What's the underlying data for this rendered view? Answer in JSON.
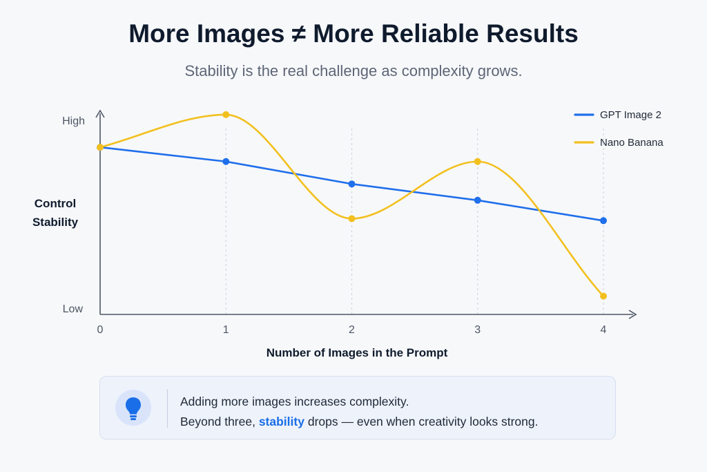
{
  "header": {
    "title": "More Images ≠ More Reliable Results",
    "subtitle": "Stability is the real challenge as complexity grows."
  },
  "colors": {
    "gpt": "#1f6feb",
    "nano": "#f2c01e",
    "axis": "#4b5563",
    "gridline": "#d0d5dd",
    "accent": "#1a6fe8"
  },
  "chart_data": {
    "type": "line",
    "xlabel": "Number of Images in the Prompt",
    "ylabel": [
      "Control",
      "Stability"
    ],
    "y_tick_labels": {
      "high": "High",
      "low": "Low"
    },
    "x": [
      0,
      1,
      2,
      3,
      4
    ],
    "xlim": [
      0,
      4.25
    ],
    "ylim": [
      0,
      1
    ],
    "grid": "vertical dashed at x = 1, 2, 3, 4",
    "legend_position": "top-right",
    "series": [
      {
        "name": "GPT Image 2",
        "values": [
          0.82,
          0.75,
          0.64,
          0.56,
          0.46
        ],
        "smooth": false
      },
      {
        "name": "Nano Banana",
        "values": [
          0.82,
          0.98,
          0.47,
          0.75,
          0.09
        ],
        "smooth": true
      }
    ]
  },
  "callout": {
    "icon": "lightbulb-icon",
    "line1": "Adding more images increases complexity.",
    "line2_before": "Beyond three, ",
    "line2_highlight": "stability",
    "line2_after": " drops — even when creativity looks strong."
  }
}
